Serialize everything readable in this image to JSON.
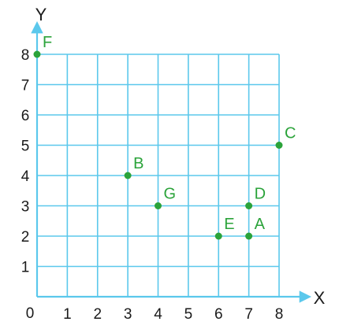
{
  "chart_data": {
    "type": "scatter",
    "xlabel": "X",
    "ylabel": "Y",
    "origin_label": "0",
    "xlim": [
      0,
      8
    ],
    "ylim": [
      0,
      8
    ],
    "x_ticks": [
      "1",
      "2",
      "3",
      "4",
      "5",
      "6",
      "7",
      "8"
    ],
    "y_ticks": [
      "1",
      "2",
      "3",
      "4",
      "5",
      "6",
      "7",
      "8"
    ],
    "grid": true,
    "points": [
      {
        "label": "A",
        "x": 7,
        "y": 2
      },
      {
        "label": "B",
        "x": 3,
        "y": 4
      },
      {
        "label": "C",
        "x": 8,
        "y": 5
      },
      {
        "label": "D",
        "x": 7,
        "y": 3
      },
      {
        "label": "E",
        "x": 6,
        "y": 2
      },
      {
        "label": "F",
        "x": 0,
        "y": 8
      },
      {
        "label": "G",
        "x": 4,
        "y": 3
      }
    ],
    "colors": {
      "grid": "#5bc8ec",
      "axis": "#5bc8ec",
      "point": "#2ba33a",
      "text": "#1a1a1a"
    }
  }
}
